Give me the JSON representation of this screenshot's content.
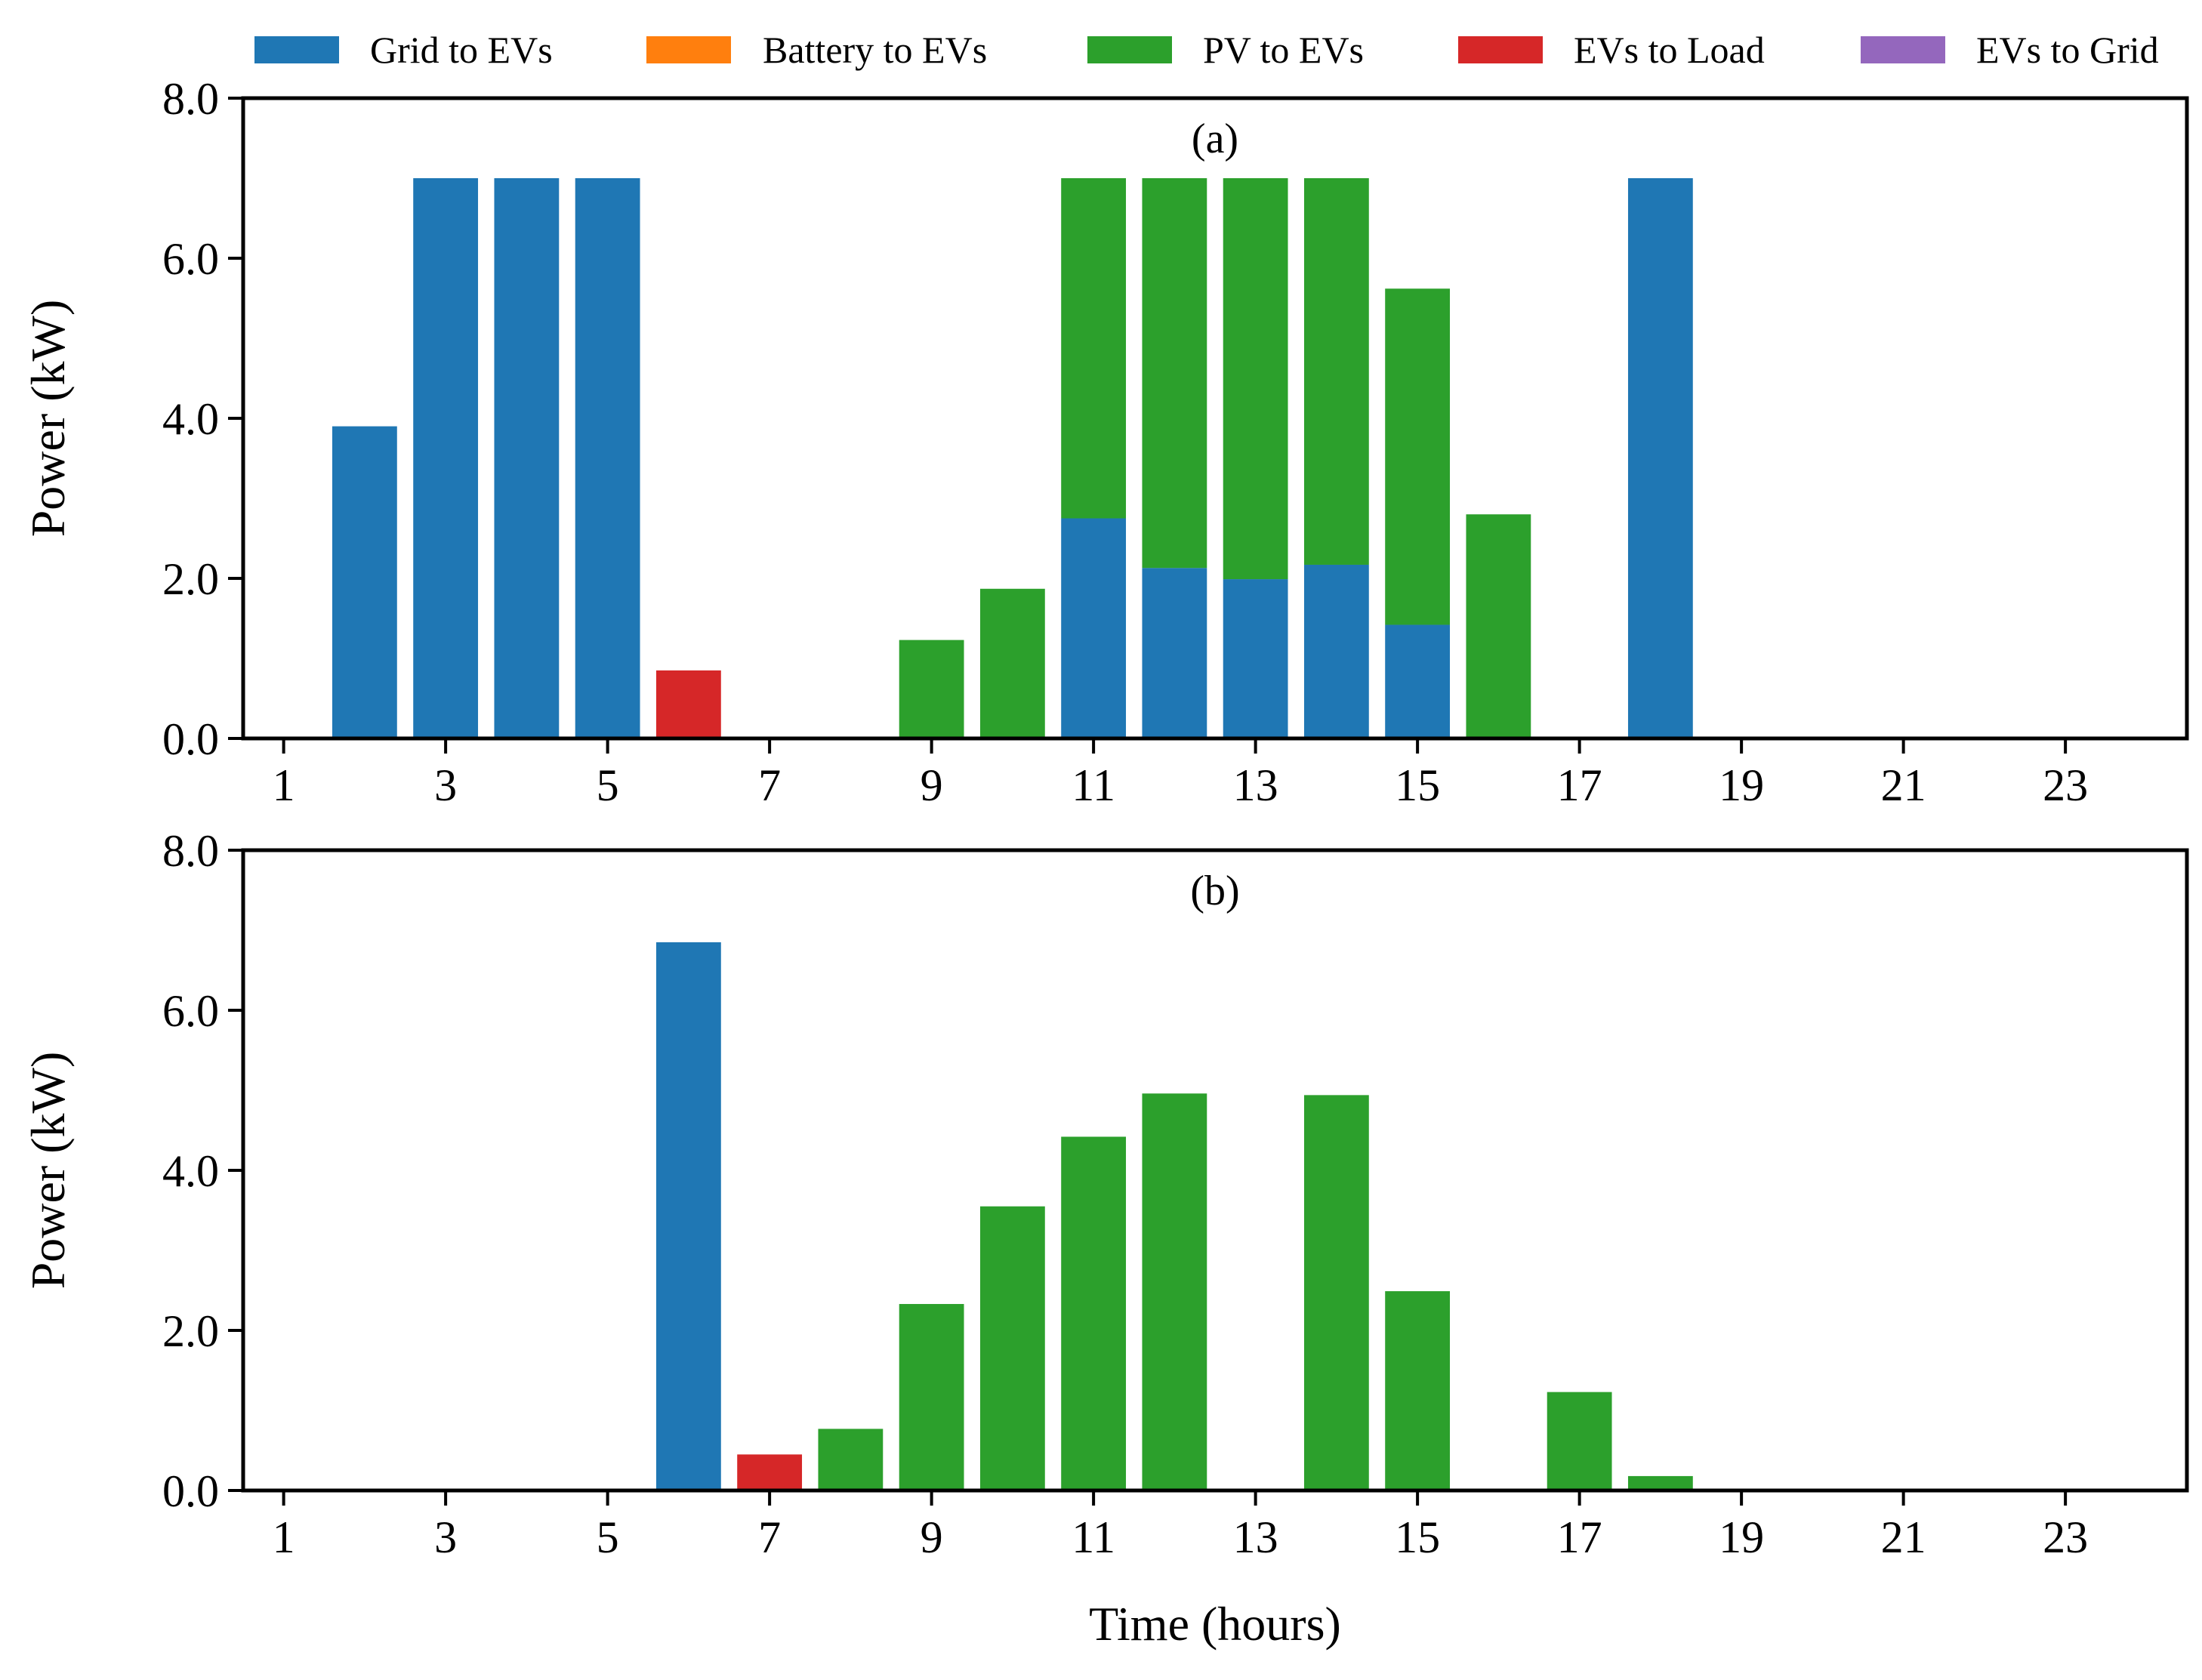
{
  "legend": {
    "items": [
      {
        "label": "Grid to EVs",
        "color": "#1f77b4"
      },
      {
        "label": "Battery to EVs",
        "color": "#ff7f0e"
      },
      {
        "label": "PV to EVs",
        "color": "#2ca02c"
      },
      {
        "label": "EVs to Load",
        "color": "#d62728"
      },
      {
        "label": "EVs to Grid",
        "color": "#9467bd"
      }
    ]
  },
  "chart_data": [
    {
      "type": "bar",
      "stacked": true,
      "panel_label": "(a)",
      "xlabel": "",
      "ylabel": "Power (kW)",
      "ylim": [
        0,
        8
      ],
      "xlim": [
        0.5,
        24.5
      ],
      "yticks": [
        "0.0",
        "2.0",
        "4.0",
        "6.0",
        "8.0"
      ],
      "xticks": [
        "1",
        "3",
        "5",
        "7",
        "9",
        "11",
        "13",
        "15",
        "17",
        "19",
        "21",
        "23"
      ],
      "categories": [
        1,
        2,
        3,
        4,
        5,
        6,
        7,
        8,
        9,
        10,
        11,
        12,
        13,
        14,
        15,
        16,
        17,
        18,
        19,
        20,
        21,
        22,
        23,
        24
      ],
      "series": [
        {
          "name": "Grid to EVs",
          "values": [
            0,
            3.9,
            7.0,
            7.0,
            7.0,
            0,
            0,
            0,
            0,
            0,
            2.75,
            2.13,
            1.99,
            2.17,
            1.42,
            0,
            0,
            7.0,
            0,
            0,
            0,
            0,
            0,
            0
          ]
        },
        {
          "name": "Battery to EVs",
          "values": [
            0,
            0,
            0,
            0,
            0,
            0,
            0,
            0,
            0,
            0,
            0,
            0,
            0,
            0,
            0,
            0,
            0,
            0,
            0,
            0,
            0,
            0,
            0,
            0
          ]
        },
        {
          "name": "PV to EVs",
          "values": [
            0,
            0,
            0,
            0,
            0,
            0,
            0,
            0,
            1.23,
            1.87,
            4.25,
            4.87,
            5.01,
            4.83,
            4.2,
            2.8,
            0,
            0,
            0,
            0,
            0,
            0,
            0,
            0
          ]
        },
        {
          "name": "EVs to Load",
          "values": [
            0,
            0,
            0,
            0,
            0,
            0.85,
            0,
            0,
            0,
            0,
            0,
            0,
            0,
            0,
            0,
            0,
            0,
            0,
            0,
            0,
            0,
            0,
            0,
            0
          ]
        },
        {
          "name": "EVs to Grid",
          "values": [
            0,
            0,
            0,
            0,
            0,
            0,
            0,
            0,
            0,
            0,
            0,
            0,
            0,
            0,
            0,
            0,
            0,
            0,
            0,
            0,
            0,
            0,
            0,
            0
          ]
        }
      ]
    },
    {
      "type": "bar",
      "stacked": true,
      "panel_label": "(b)",
      "xlabel": "Time (hours)",
      "ylabel": "Power (kW)",
      "ylim": [
        0,
        8
      ],
      "xlim": [
        0.5,
        24.5
      ],
      "yticks": [
        "0.0",
        "2.0",
        "4.0",
        "6.0",
        "8.0"
      ],
      "xticks": [
        "1",
        "3",
        "5",
        "7",
        "9",
        "11",
        "13",
        "15",
        "17",
        "19",
        "21",
        "23"
      ],
      "categories": [
        1,
        2,
        3,
        4,
        5,
        6,
        7,
        8,
        9,
        10,
        11,
        12,
        13,
        14,
        15,
        16,
        17,
        18,
        19,
        20,
        21,
        22,
        23,
        24
      ],
      "series": [
        {
          "name": "Grid to EVs",
          "values": [
            0,
            0,
            0,
            0,
            0,
            6.85,
            0,
            0,
            0,
            0,
            0,
            0,
            0,
            0,
            0,
            0,
            0,
            0,
            0,
            0,
            0,
            0,
            0,
            0
          ]
        },
        {
          "name": "Battery to EVs",
          "values": [
            0,
            0,
            0,
            0,
            0,
            0,
            0,
            0,
            0,
            0,
            0,
            0,
            0,
            0,
            0,
            0,
            0,
            0,
            0,
            0,
            0,
            0,
            0,
            0
          ]
        },
        {
          "name": "PV to EVs",
          "values": [
            0,
            0,
            0,
            0,
            0,
            0,
            0,
            0.77,
            2.33,
            3.55,
            4.42,
            4.96,
            0,
            4.94,
            2.49,
            0,
            1.23,
            0.18,
            0,
            0,
            0,
            0,
            0,
            0
          ]
        },
        {
          "name": "EVs to Load",
          "values": [
            0,
            0,
            0,
            0,
            0,
            0,
            0.45,
            0,
            0,
            0,
            0,
            0,
            0,
            0,
            0,
            0,
            0,
            0,
            0,
            0,
            0,
            0,
            0,
            0
          ]
        },
        {
          "name": "EVs to Grid",
          "values": [
            0,
            0,
            0,
            0,
            0,
            0,
            0,
            0,
            0,
            0,
            0,
            0,
            0,
            0,
            0,
            0,
            0,
            0,
            0,
            0,
            0,
            0,
            0,
            0
          ]
        }
      ]
    }
  ]
}
